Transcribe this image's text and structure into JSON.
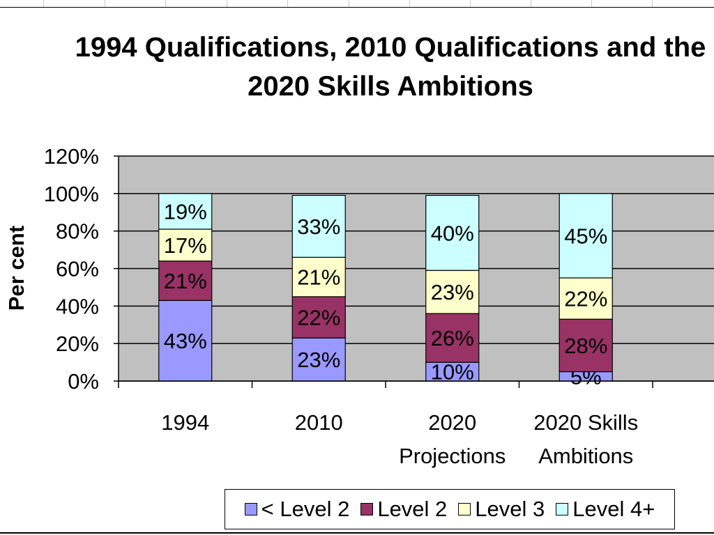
{
  "chart_data": {
    "type": "bar",
    "stacked": true,
    "title": [
      "1994 Qualifications, 2010 Qualifications and the",
      "2020 Skills Ambitions"
    ],
    "xlabel": "",
    "ylabel": "Per cent",
    "ylim": [
      0,
      120
    ],
    "yticks": [
      "0%",
      "20%",
      "40%",
      "60%",
      "80%",
      "100%",
      "120%"
    ],
    "grid": true,
    "plot_background": "#c0c0c0",
    "legend_position": "bottom",
    "categories": [
      [
        "1994"
      ],
      [
        "2010"
      ],
      [
        "2020",
        "Projections"
      ],
      [
        "2020 Skills",
        "Ambitions"
      ]
    ],
    "series": [
      {
        "name": "< Level 2",
        "color": "#9999ff",
        "values": [
          43,
          23,
          10,
          5
        ]
      },
      {
        "name": "Level 2",
        "color": "#993366",
        "values": [
          21,
          22,
          26,
          28
        ]
      },
      {
        "name": "Level 3",
        "color": "#ffffcc",
        "values": [
          17,
          21,
          23,
          22
        ]
      },
      {
        "name": "Level 4+",
        "color": "#ccffff",
        "values": [
          19,
          33,
          40,
          45
        ]
      }
    ],
    "data_labels": [
      [
        "43%",
        "23%",
        "10%",
        "5%"
      ],
      [
        "21%",
        "22%",
        "26%",
        "28%"
      ],
      [
        "17%",
        "21%",
        "23%",
        "22%"
      ],
      [
        "19%",
        "33%",
        "40%",
        "45%"
      ]
    ]
  }
}
